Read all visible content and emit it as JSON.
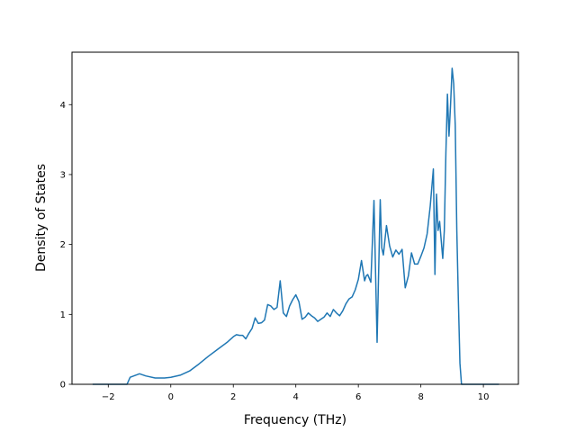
{
  "chart_data": {
    "type": "line",
    "title": "",
    "xlabel": "Frequency (THz)",
    "ylabel": "Density of States",
    "xlim": [
      -3.16,
      11.12
    ],
    "ylim": [
      0,
      4.75
    ],
    "xticks": [
      -2,
      0,
      2,
      4,
      6,
      8,
      10
    ],
    "yticks": [
      0,
      1,
      2,
      3,
      4
    ],
    "grid": false,
    "legend": "none",
    "series_color": "#1f77b4",
    "series": [
      {
        "x": [
          -2.5,
          -1.4,
          -1.3,
          -1.0,
          -0.8,
          -0.5,
          -0.2,
          0.0,
          0.3,
          0.6,
          0.9,
          1.2,
          1.5,
          1.8,
          2.0,
          2.1,
          2.2,
          2.3,
          2.4,
          2.5,
          2.6,
          2.7,
          2.8,
          2.9,
          3.0,
          3.1,
          3.2,
          3.3,
          3.4,
          3.5,
          3.6,
          3.7,
          3.8,
          3.9,
          4.0,
          4.1,
          4.2,
          4.3,
          4.4,
          4.5,
          4.6,
          4.7,
          4.8,
          4.9,
          5.0,
          5.1,
          5.2,
          5.3,
          5.4,
          5.5,
          5.6,
          5.7,
          5.8,
          5.9,
          6.0,
          6.1,
          6.2,
          6.25,
          6.3,
          6.4,
          6.5,
          6.6,
          6.7,
          6.75,
          6.8,
          6.9,
          7.0,
          7.1,
          7.2,
          7.3,
          7.4,
          7.5,
          7.6,
          7.7,
          7.8,
          7.9,
          8.0,
          8.1,
          8.2,
          8.3,
          8.4,
          8.45,
          8.5,
          8.55,
          8.6,
          8.7,
          8.75,
          8.8,
          8.85,
          8.9,
          8.95,
          9.0,
          9.05,
          9.1,
          9.15,
          9.2,
          9.25,
          9.3,
          9.35,
          9.4,
          9.45,
          9.5,
          10.5
        ],
        "y": [
          0.0,
          0.0,
          0.1,
          0.15,
          0.12,
          0.09,
          0.09,
          0.1,
          0.13,
          0.19,
          0.29,
          0.4,
          0.5,
          0.6,
          0.68,
          0.71,
          0.7,
          0.7,
          0.65,
          0.73,
          0.8,
          0.95,
          0.87,
          0.88,
          0.92,
          1.14,
          1.12,
          1.07,
          1.1,
          1.48,
          1.02,
          0.97,
          1.12,
          1.21,
          1.28,
          1.18,
          0.93,
          0.96,
          1.02,
          0.98,
          0.95,
          0.9,
          0.93,
          0.96,
          1.02,
          0.97,
          1.07,
          1.02,
          0.98,
          1.05,
          1.15,
          1.22,
          1.25,
          1.35,
          1.5,
          1.77,
          1.48,
          1.55,
          1.57,
          1.46,
          2.63,
          0.6,
          2.64,
          1.95,
          1.85,
          2.27,
          1.98,
          1.82,
          1.92,
          1.86,
          1.93,
          1.38,
          1.55,
          1.88,
          1.72,
          1.72,
          1.83,
          1.95,
          2.15,
          2.55,
          3.08,
          1.57,
          2.72,
          2.2,
          2.33,
          1.8,
          2.2,
          3.3,
          4.15,
          3.55,
          4.0,
          4.52,
          4.3,
          3.7,
          2.2,
          1.2,
          0.3,
          0.0,
          0.0,
          0.0,
          0.0,
          0.0,
          0.0
        ]
      }
    ]
  }
}
